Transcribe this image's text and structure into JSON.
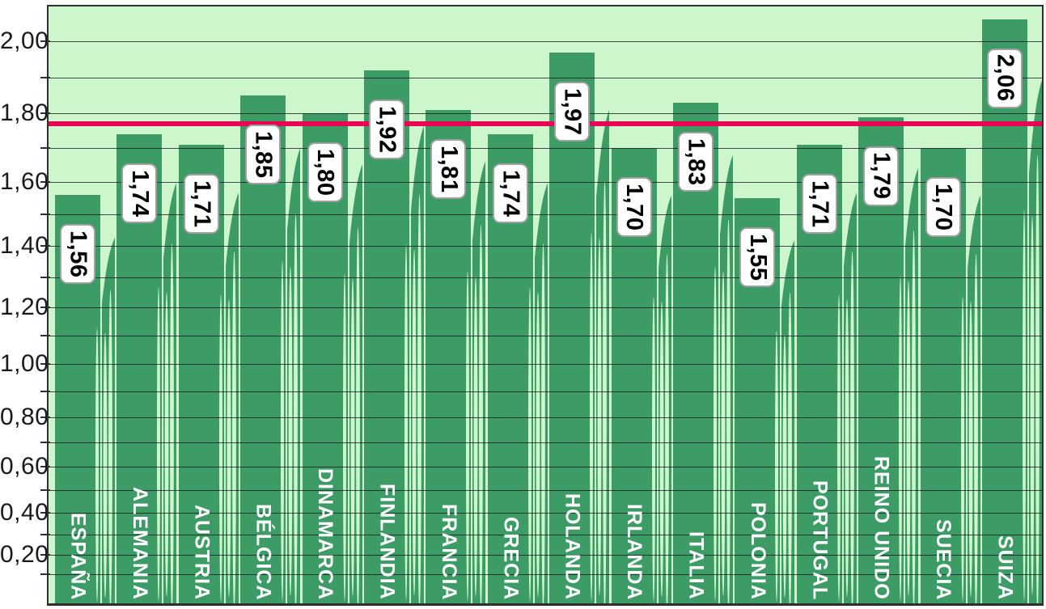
{
  "chart_data": {
    "type": "bar",
    "title": "",
    "xlabel": "",
    "ylabel": "",
    "categories": [
      "ESPAÑA",
      "ALEMANIA",
      "AUSTRIA",
      "BÉLGICA",
      "DINAMARCA",
      "FINLANDIA",
      "FRANCIA",
      "GRECIA",
      "HOLANDA",
      "IRLANDA",
      "ITALIA",
      "POLONIA",
      "PORTUGAL",
      "REINO UNIDO",
      "SUECIA",
      "SUIZA"
    ],
    "values": [
      1.56,
      1.74,
      1.71,
      1.85,
      1.8,
      1.92,
      1.81,
      1.74,
      1.97,
      1.7,
      1.83,
      1.55,
      1.71,
      1.79,
      1.7,
      2.06
    ],
    "value_labels": [
      "1,56",
      "1,74",
      "1,71",
      "1,85",
      "1,80",
      "1,92",
      "1,81",
      "1,74",
      "1,97",
      "1,70",
      "1,83",
      "1,55",
      "1,71",
      "1,79",
      "1,70",
      "2,06"
    ],
    "ylim": [
      0,
      2.11
    ],
    "y_tick_values": [
      0.2,
      0.4,
      0.6,
      0.8,
      1.0,
      1.2,
      1.4,
      1.6,
      1.8,
      2.0
    ],
    "y_tick_labels": [
      "0,20",
      "0,40",
      "0,60",
      "0,80",
      "1,00",
      "1,20",
      "1,40",
      "1,60",
      "1,80",
      "2,00"
    ],
    "minor_grid_step": 0.1,
    "grid": true,
    "legend": "none",
    "reference_line": {
      "value": 1.77
    },
    "colors": {
      "plot_bg": "#cdf6cd",
      "bar": "#3d9c66",
      "grid": "#2f2f2f",
      "border": "#2f2f2f",
      "reference_line": "#e70053",
      "value_box_bg": "#ffffff",
      "value_box_border": "#a0a0a0",
      "value_text": "#000000",
      "category_text": "#ffffff",
      "axis_text": "#1a1a1a",
      "outer_bg": "#ffffff"
    }
  }
}
